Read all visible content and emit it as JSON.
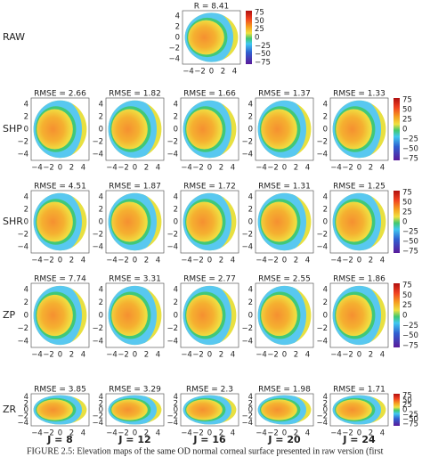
{
  "raw": {
    "label": "RAW",
    "title": "R = 8.41"
  },
  "rows": [
    {
      "label": "SHP",
      "titles": [
        "RMSE = 2.66",
        "RMSE = 1.82",
        "RMSE = 1.66",
        "RMSE = 1.37",
        "RMSE = 1.33"
      ]
    },
    {
      "label": "SHR",
      "titles": [
        "RMSE = 4.51",
        "RMSE = 1.87",
        "RMSE = 1.72",
        "RMSE = 1.31",
        "RMSE = 1.25"
      ]
    },
    {
      "label": "ZP",
      "titles": [
        "RMSE = 7.74",
        "RMSE = 3.31",
        "RMSE = 2.77",
        "RMSE = 2.55",
        "RMSE = 1.86"
      ]
    },
    {
      "label": "ZR",
      "titles": [
        "RMSE = 3.85",
        "RMSE = 3.29",
        "RMSE = 2.3",
        "RMSE = 1.98",
        "RMSE = 1.71"
      ]
    }
  ],
  "columns": [
    "J = 8",
    "J = 12",
    "J = 16",
    "J = 20",
    "J = 24"
  ],
  "axis_ticks": [
    "−4",
    "−2",
    "0",
    "2",
    "4"
  ],
  "colorbar_ticks": [
    "75",
    "50",
    "25",
    "0",
    "−25",
    "−50",
    "−75"
  ],
  "caption": "FIGURE 2.5: Elevation maps of the same OD normal corneal surface presented in raw version (first"
}
